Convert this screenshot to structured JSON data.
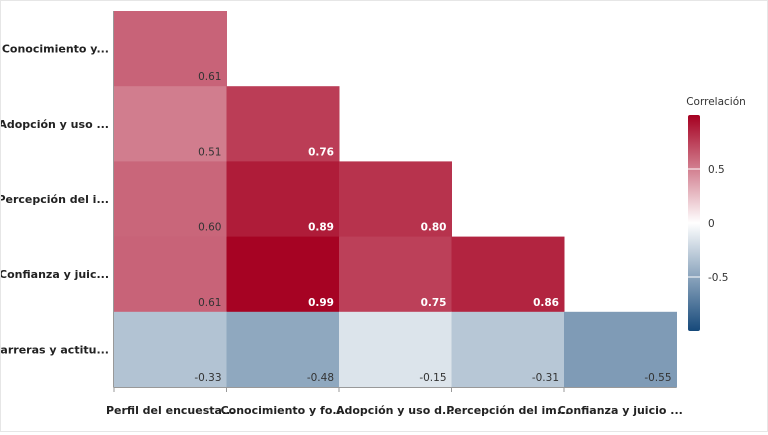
{
  "chart_data": {
    "type": "heatmap",
    "title": "",
    "xlabel": "",
    "ylabel": "",
    "x_categories": [
      "Perfil del encuesta...",
      "Conocimiento y fo...",
      "Adopción y uso d...",
      "Percepción del im...",
      "Confianza y juicio ..."
    ],
    "y_categories": [
      "Conocimiento y...",
      "Adopción y uso ...",
      "Percepción del i...",
      "Confianza y juic...",
      "Barreras y actitu..."
    ],
    "values": [
      [
        0.61,
        null,
        null,
        null,
        null
      ],
      [
        0.51,
        0.76,
        null,
        null,
        null
      ],
      [
        0.6,
        0.89,
        0.8,
        null,
        null
      ],
      [
        0.61,
        0.99,
        0.75,
        0.86,
        null
      ],
      [
        -0.33,
        -0.48,
        -0.15,
        -0.31,
        -0.55
      ]
    ],
    "value_labels": [
      [
        "0.61",
        null,
        null,
        null,
        null
      ],
      [
        "0.51",
        "0.76",
        null,
        null,
        null
      ],
      [
        "0.60",
        "0.89",
        "0.80",
        null,
        null
      ],
      [
        "0.61",
        "0.99",
        "0.75",
        "0.86",
        null
      ],
      [
        "-0.33",
        "-0.48",
        "-0.15",
        "-0.31",
        "-0.55"
      ]
    ],
    "colorbar": {
      "title": "Correlación",
      "range": [
        -1,
        1
      ],
      "ticks": [
        0.5,
        0,
        -0.5
      ],
      "tick_labels": [
        "0.5",
        "0",
        "-0.5"
      ],
      "colors": {
        "positive": "#a50021",
        "neutral": "#ffffff",
        "negative": "#16497a"
      }
    }
  }
}
